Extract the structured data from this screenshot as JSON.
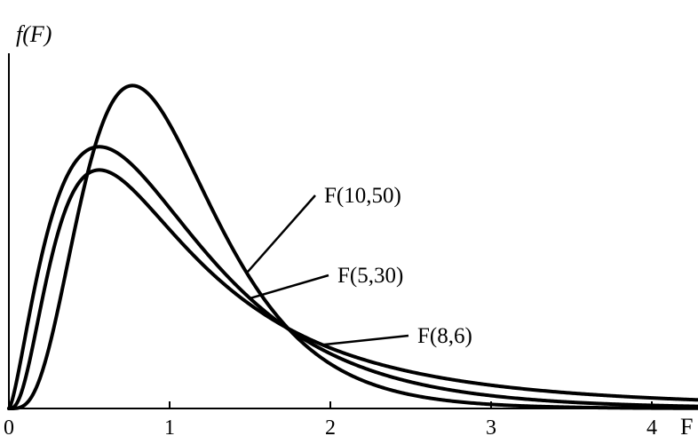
{
  "chart_data": {
    "type": "line",
    "title": "",
    "xlabel": "F",
    "ylabel": "f(F)",
    "xlim": [
      0,
      4.3
    ],
    "ylim": [
      0,
      1.0
    ],
    "grid": false,
    "xticks": [
      {
        "value": 0,
        "label": "0"
      },
      {
        "value": 1,
        "label": "1"
      },
      {
        "value": 2,
        "label": "2"
      },
      {
        "value": 3,
        "label": "3"
      },
      {
        "value": 4,
        "label": "4"
      }
    ],
    "series": [
      {
        "name": "F(10,50)",
        "df1": 10,
        "df2": 50
      },
      {
        "name": "F(5,30)",
        "df1": 5,
        "df2": 30
      },
      {
        "name": "F(8,6)",
        "df1": 8,
        "df2": 6
      }
    ]
  }
}
